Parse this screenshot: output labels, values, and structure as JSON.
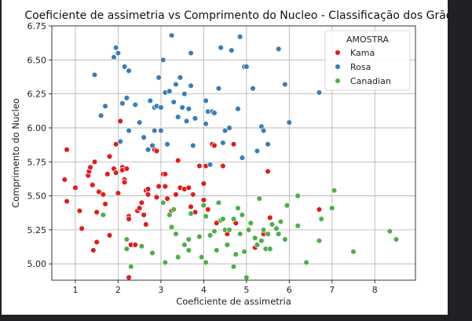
{
  "chart_data": {
    "type": "scatter",
    "title": "Coeficiente de assimetria vs Comprimento do Nucleo - Classificação dos Grãos",
    "xlabel": "Coeficiente de assimetria",
    "ylabel": "Comprimento do Nucleo",
    "xlim": [
      0.45,
      8.95
    ],
    "ylim": [
      4.88,
      6.75
    ],
    "xticks": [
      1,
      2,
      3,
      4,
      5,
      6,
      7,
      8
    ],
    "yticks": [
      5.0,
      5.25,
      5.5,
      5.75,
      6.0,
      6.25,
      6.5,
      6.75
    ],
    "xtick_labels": [
      "1",
      "2",
      "3",
      "4",
      "5",
      "6",
      "7",
      "8"
    ],
    "ytick_labels": [
      "5.00",
      "5.25",
      "5.50",
      "5.75",
      "6.00",
      "6.25",
      "6.50",
      "6.75"
    ],
    "grid": true,
    "legend": {
      "title": "AMOSTRA",
      "placement": "top-right"
    },
    "series": [
      {
        "name": "Kama",
        "color": "#e31a1c",
        "points": [
          [
            0.8,
            5.84
          ],
          [
            0.75,
            5.62
          ],
          [
            0.8,
            5.46
          ],
          [
            1.0,
            5.56
          ],
          [
            1.1,
            5.39
          ],
          [
            1.15,
            5.26
          ],
          [
            1.3,
            5.65
          ],
          [
            1.32,
            5.68
          ],
          [
            1.35,
            5.71
          ],
          [
            1.4,
            5.58
          ],
          [
            1.45,
            5.75
          ],
          [
            1.42,
            5.1
          ],
          [
            1.5,
            5.16
          ],
          [
            1.5,
            5.38
          ],
          [
            1.55,
            5.53
          ],
          [
            1.65,
            5.51
          ],
          [
            1.7,
            5.44
          ],
          [
            1.75,
            5.66
          ],
          [
            1.8,
            5.79
          ],
          [
            1.8,
            5.21
          ],
          [
            1.9,
            5.7
          ],
          [
            1.95,
            5.88
          ],
          [
            1.95,
            5.67
          ],
          [
            2.0,
            5.52
          ],
          [
            2.05,
            6.05
          ],
          [
            2.1,
            5.71
          ],
          [
            2.1,
            5.69
          ],
          [
            2.15,
            5.62
          ],
          [
            2.15,
            5.6
          ],
          [
            2.2,
            5.7
          ],
          [
            2.25,
            5.35
          ],
          [
            2.25,
            5.33
          ],
          [
            2.3,
            5.14
          ],
          [
            2.4,
            5.14
          ],
          [
            2.25,
            4.9
          ],
          [
            2.45,
            5.39
          ],
          [
            2.5,
            5.41
          ],
          [
            2.55,
            5.45
          ],
          [
            2.6,
            5.36
          ],
          [
            2.65,
            5.54
          ],
          [
            2.7,
            5.55
          ],
          [
            2.65,
            5.29
          ],
          [
            2.7,
            5.51
          ],
          [
            2.85,
            5.84
          ],
          [
            2.9,
            5.49
          ],
          [
            2.95,
            5.57
          ],
          [
            2.9,
            5.83
          ],
          [
            3.05,
            5.66
          ],
          [
            3.1,
            5.66
          ],
          [
            3.1,
            5.57
          ],
          [
            3.15,
            5.48
          ],
          [
            3.25,
            5.39
          ],
          [
            3.3,
            5.4
          ],
          [
            3.35,
            5.51
          ],
          [
            3.4,
            5.76
          ],
          [
            3.45,
            5.56
          ],
          [
            3.55,
            5.55
          ],
          [
            3.65,
            5.56
          ],
          [
            3.7,
            5.42
          ],
          [
            3.75,
            5.51
          ],
          [
            3.8,
            5.38
          ],
          [
            3.9,
            5.72
          ],
          [
            4.0,
            5.59
          ],
          [
            4.0,
            5.47
          ],
          [
            4.05,
            5.72
          ],
          [
            4.1,
            5.4
          ],
          [
            4.2,
            5.88
          ],
          [
            4.25,
            5.87
          ],
          [
            4.3,
            5.3
          ],
          [
            4.45,
            5.72
          ],
          [
            4.55,
            5.22
          ],
          [
            4.7,
            5.88
          ],
          [
            4.75,
            5.3
          ],
          [
            5.2,
            5.12
          ],
          [
            5.4,
            5.22
          ],
          [
            5.5,
            5.68
          ],
          [
            5.55,
            5.34
          ],
          [
            6.7,
            5.4
          ]
        ]
      },
      {
        "name": "Rosa",
        "color": "#377eb8",
        "points": [
          [
            1.45,
            6.39
          ],
          [
            1.6,
            6.09
          ],
          [
            1.7,
            6.16
          ],
          [
            1.9,
            6.52
          ],
          [
            1.95,
            6.59
          ],
          [
            2.0,
            6.55
          ],
          [
            2.05,
            5.9
          ],
          [
            2.1,
            6.18
          ],
          [
            2.15,
            6.45
          ],
          [
            2.2,
            6.22
          ],
          [
            2.25,
            6.42
          ],
          [
            2.25,
            5.98
          ],
          [
            2.4,
            6.17
          ],
          [
            2.5,
            6.04
          ],
          [
            2.6,
            5.93
          ],
          [
            2.7,
            5.84
          ],
          [
            2.75,
            6.2
          ],
          [
            2.8,
            5.87
          ],
          [
            2.85,
            6.15
          ],
          [
            2.85,
            5.98
          ],
          [
            2.9,
            6.16
          ],
          [
            2.95,
            6.37
          ],
          [
            3.0,
            6.15
          ],
          [
            3.0,
            5.98
          ],
          [
            3.05,
            6.5
          ],
          [
            3.1,
            6.26
          ],
          [
            3.15,
            5.88
          ],
          [
            3.25,
            6.68
          ],
          [
            3.2,
            6.27
          ],
          [
            3.3,
            6.19
          ],
          [
            3.35,
            6.32
          ],
          [
            3.4,
            6.08
          ],
          [
            3.45,
            6.37
          ],
          [
            3.5,
            6.15
          ],
          [
            3.55,
            6.25
          ],
          [
            3.6,
            6.05
          ],
          [
            3.65,
            6.14
          ],
          [
            3.7,
            6.31
          ],
          [
            3.7,
            6.55
          ],
          [
            3.75,
            5.87
          ],
          [
            3.8,
            6.07
          ],
          [
            4.05,
            6.2
          ],
          [
            4.05,
            6.03
          ],
          [
            4.1,
            6.12
          ],
          [
            4.15,
            5.73
          ],
          [
            4.2,
            6.12
          ],
          [
            4.25,
            6.11
          ],
          [
            4.35,
            6.29
          ],
          [
            4.4,
            6.59
          ],
          [
            4.45,
            5.89
          ],
          [
            4.5,
            5.98
          ],
          [
            4.6,
            6.0
          ],
          [
            4.65,
            6.57
          ],
          [
            4.8,
            6.14
          ],
          [
            4.85,
            6.67
          ],
          [
            4.9,
            5.78
          ],
          [
            4.95,
            6.45
          ],
          [
            5.0,
            6.45
          ],
          [
            5.15,
            6.29
          ],
          [
            5.25,
            5.83
          ],
          [
            5.35,
            6.01
          ],
          [
            5.4,
            5.98
          ],
          [
            5.5,
            5.88
          ],
          [
            5.75,
            6.58
          ],
          [
            5.9,
            6.32
          ],
          [
            6.0,
            6.04
          ],
          [
            6.7,
            6.26
          ]
        ]
      },
      {
        "name": "Canadian",
        "color": "#4daf4a",
        "points": [
          [
            1.65,
            5.36
          ],
          [
            2.2,
            5.18
          ],
          [
            2.2,
            5.11
          ],
          [
            2.3,
            4.98
          ],
          [
            2.55,
            5.13
          ],
          [
            2.8,
            5.08
          ],
          [
            3.05,
            5.45
          ],
          [
            3.1,
            5.01
          ],
          [
            3.2,
            5.36
          ],
          [
            3.25,
            5.27
          ],
          [
            3.35,
            5.22
          ],
          [
            3.4,
            5.05
          ],
          [
            3.55,
            5.14
          ],
          [
            3.65,
            5.18
          ],
          [
            3.65,
            5.1
          ],
          [
            3.7,
            5.37
          ],
          [
            3.9,
            5.2
          ],
          [
            3.95,
            5.05
          ],
          [
            4.0,
            5.43
          ],
          [
            4.05,
            5.01
          ],
          [
            4.05,
            5.35
          ],
          [
            4.15,
            5.21
          ],
          [
            4.25,
            5.24
          ],
          [
            4.3,
            5.1
          ],
          [
            4.35,
            5.45
          ],
          [
            4.4,
            5.32
          ],
          [
            4.45,
            5.33
          ],
          [
            4.5,
            5.25
          ],
          [
            4.55,
            5.14
          ],
          [
            4.6,
            5.25
          ],
          [
            4.7,
            5.33
          ],
          [
            4.75,
            5.07
          ],
          [
            4.8,
            5.41
          ],
          [
            4.85,
            5.22
          ],
          [
            4.9,
            5.36
          ],
          [
            4.95,
            5.09
          ],
          [
            5.0,
            4.9
          ],
          [
            5.05,
            5.25
          ],
          [
            5.1,
            5.3
          ],
          [
            5.2,
            5.19
          ],
          [
            5.3,
            5.48
          ],
          [
            5.35,
            5.17
          ],
          [
            5.4,
            5.25
          ],
          [
            5.45,
            5.11
          ],
          [
            5.5,
            5.22
          ],
          [
            5.55,
            5.11
          ],
          [
            5.6,
            5.29
          ],
          [
            5.7,
            5.26
          ],
          [
            5.75,
            5.22
          ],
          [
            5.8,
            5.31
          ],
          [
            5.9,
            5.18
          ],
          [
            5.95,
            5.43
          ],
          [
            6.2,
            5.28
          ],
          [
            6.2,
            5.5
          ],
          [
            6.4,
            5.01
          ],
          [
            6.7,
            5.17
          ],
          [
            6.75,
            5.33
          ],
          [
            7.0,
            5.41
          ],
          [
            7.05,
            5.54
          ],
          [
            7.5,
            5.09
          ],
          [
            8.35,
            5.24
          ],
          [
            8.5,
            5.18
          ],
          [
            4.7,
            4.98
          ],
          [
            3.3,
            5.4
          ],
          [
            5.25,
            5.14
          ]
        ]
      }
    ]
  }
}
